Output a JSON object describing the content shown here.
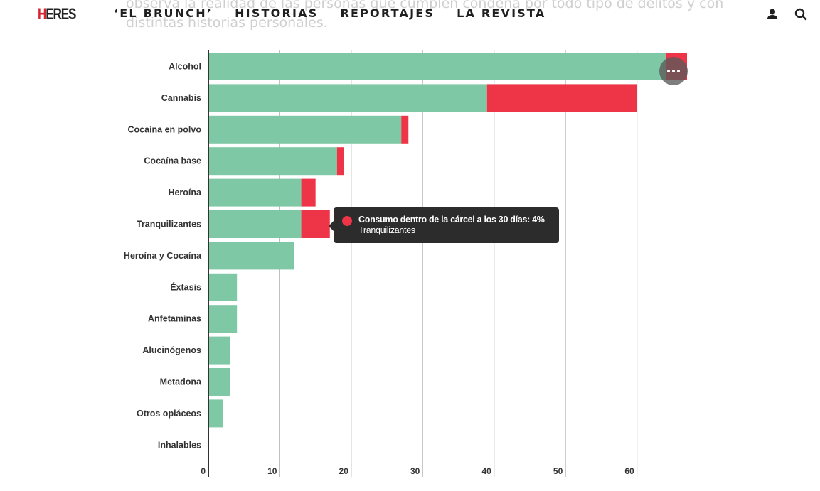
{
  "article": {
    "line1": "observa la realidad de las personas que cumplen condena por todo tipo de delitos y con",
    "line2": "distintas historias personales."
  },
  "header": {
    "logo": {
      "first": "H",
      "rest": "ERES"
    },
    "nav": [
      {
        "label": "‘EL BRUNCH’"
      },
      {
        "label": "HISTORIAS"
      },
      {
        "label": "REPORTAJES"
      },
      {
        "label": "LA REVISTA"
      }
    ],
    "icons": [
      "user-icon",
      "search-icon"
    ]
  },
  "tooltip": {
    "series_label": "Consumo dentro de la cárcel a los 30 días: 4%",
    "category": "Tranquilizantes"
  },
  "colors": {
    "green": "#7ec8a6",
    "red": "#ee3447",
    "grid": "#bdbdbd",
    "axis": "#333333",
    "label": "#333333",
    "nav_text": "#1f1f1f",
    "brand_red": "#d9232e"
  },
  "chart_data": {
    "type": "bar",
    "orientation": "horizontal",
    "stacked": true,
    "categories": [
      "Alcohol",
      "Cannabis",
      "Cocaína en polvo",
      "Cocaína base",
      "Heroína",
      "Tranquilizantes",
      "Heroína y Cocaína",
      "Éxtasis",
      "Anfetaminas",
      "Alucinógenos",
      "Metadona",
      "Otros opiáceos",
      "Inhalables"
    ],
    "series": [
      {
        "values": [
          64,
          39,
          27,
          18,
          13,
          13,
          12,
          4,
          4,
          3,
          3,
          2,
          0
        ],
        "color": "#7ec8a6"
      },
      {
        "name": "Consumo dentro de la cárcel a los 30 días",
        "values": [
          3,
          21,
          1,
          1,
          2,
          4,
          0,
          0,
          0,
          0,
          0,
          0,
          0
        ],
        "color": "#ee3447"
      }
    ],
    "xlim": [
      0,
      67
    ],
    "xticks": [
      0,
      10,
      20,
      30,
      40,
      50,
      60
    ],
    "grid": true,
    "legend": "none"
  }
}
